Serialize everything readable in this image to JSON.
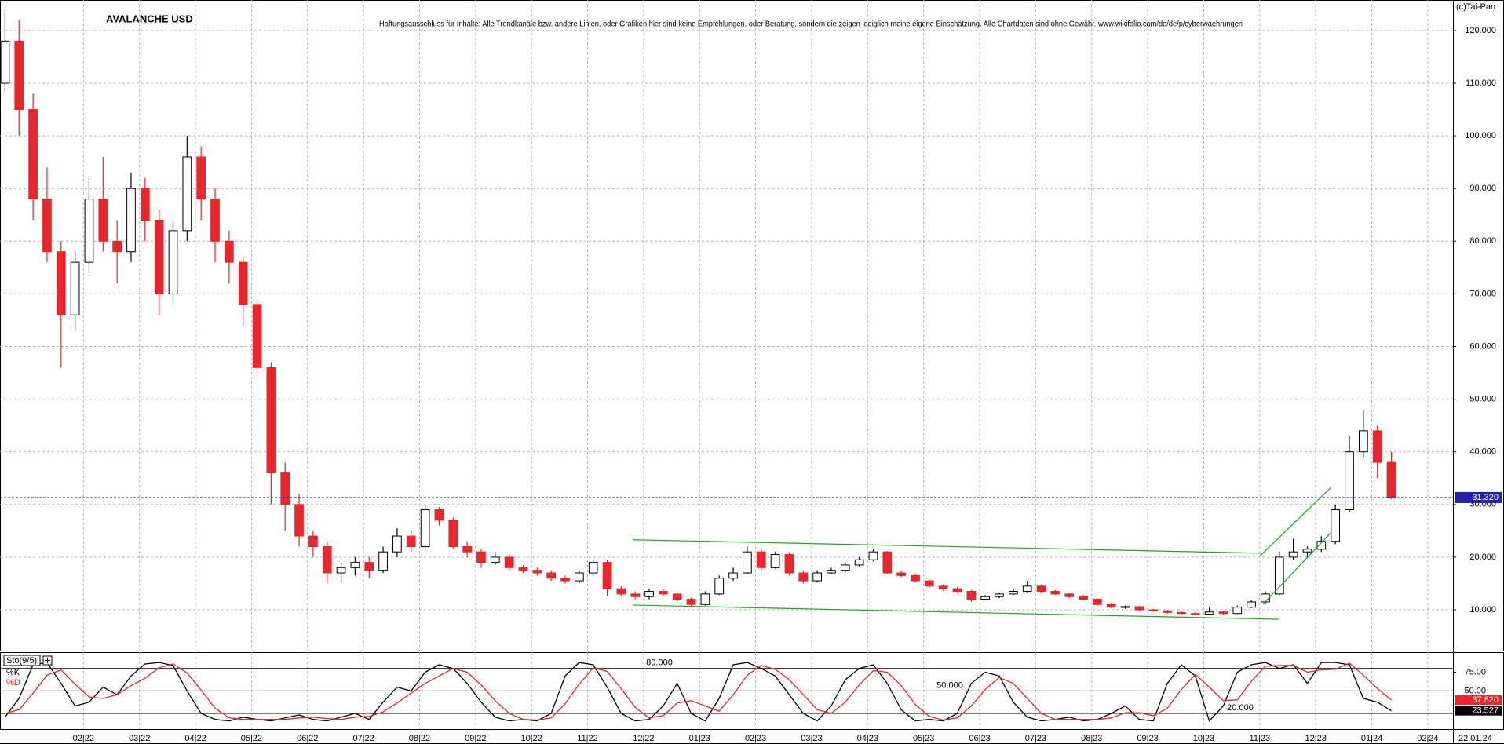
{
  "chart_data": [
    {
      "type": "candlestick",
      "title": "AVALANCHE USD",
      "disclaimer": "Haftungsausschluss für Inhalte: Alle Trendkanäle bzw. andere Linien, oder Grafiken hier sind keine Empfehlungen, oder Beratung, sondern die zeigen lediglich meine eigene Einschätzung. Alle Chartdaten sind ohne Gewähr.  www.wikifolio.com/de/de/p/cyberwaehrungen",
      "copyright": "(c)Tai-Pan",
      "date_label": "22.01.24",
      "up_color": "#ffffff",
      "down_color": "#e8262b",
      "grid": true,
      "xlim": [
        -0.49,
        25.45
      ],
      "ylim": [
        2.25,
        125.8
      ],
      "xticks": [
        {
          "value": 1,
          "label": "02|22"
        },
        {
          "value": 2,
          "label": "03|22"
        },
        {
          "value": 3,
          "label": "04|22"
        },
        {
          "value": 4,
          "label": "05|22"
        },
        {
          "value": 5,
          "label": "06|22"
        },
        {
          "value": 6,
          "label": "07|22"
        },
        {
          "value": 7,
          "label": "08|22"
        },
        {
          "value": 8,
          "label": "09|22"
        },
        {
          "value": 9,
          "label": "10|22"
        },
        {
          "value": 10,
          "label": "11|22"
        },
        {
          "value": 11,
          "label": "12|22"
        },
        {
          "value": 12,
          "label": "01|23"
        },
        {
          "value": 13,
          "label": "02|23"
        },
        {
          "value": 14,
          "label": "03|23"
        },
        {
          "value": 15,
          "label": "04|23"
        },
        {
          "value": 16,
          "label": "05|23"
        },
        {
          "value": 17,
          "label": "06|23"
        },
        {
          "value": 18,
          "label": "07|23"
        },
        {
          "value": 19,
          "label": "08|23"
        },
        {
          "value": 20,
          "label": "09|23"
        },
        {
          "value": 21,
          "label": "10|23"
        },
        {
          "value": 22,
          "label": "11|23"
        },
        {
          "value": 23,
          "label": "12|23"
        },
        {
          "value": 24,
          "label": "01|24"
        },
        {
          "value": 25,
          "label": "02|24"
        }
      ],
      "yticks": [
        {
          "value": 120,
          "label": "120.000"
        },
        {
          "value": 110,
          "label": "110.000"
        },
        {
          "value": 100,
          "label": "100.000"
        },
        {
          "value": 90,
          "label": "90.000"
        },
        {
          "value": 80,
          "label": "80.000"
        },
        {
          "value": 70,
          "label": "70.000"
        },
        {
          "value": 60,
          "label": "60.000"
        },
        {
          "value": 50,
          "label": "50.000"
        },
        {
          "value": 40,
          "label": "40.000"
        },
        {
          "value": 30,
          "label": "30.000"
        },
        {
          "value": 20,
          "label": "20.000"
        },
        {
          "value": 10,
          "label": "10.000"
        }
      ],
      "last_price": {
        "value": 31.32,
        "label": "31.320",
        "color": "#2222aa"
      },
      "trendlines": [
        {
          "color": "#22a322",
          "x": [
            10.81,
            22.03
          ],
          "y": [
            23.3,
            20.75
          ]
        },
        {
          "color": "#22a322",
          "x": [
            10.81,
            22.34
          ],
          "y": [
            10.9,
            8.2
          ]
        },
        {
          "color": "#22a322",
          "x": [
            22.0,
            23.28
          ],
          "y": [
            20.2,
            33.3
          ]
        },
        {
          "color": "#22a322",
          "x": [
            22.06,
            23.28
          ],
          "y": [
            11.1,
            24.75
          ]
        }
      ],
      "x": [
        -0.4,
        -0.15,
        0.1,
        0.35,
        0.6,
        0.85,
        1.1,
        1.35,
        1.6,
        1.85,
        2.1,
        2.35,
        2.6,
        2.85,
        3.1,
        3.35,
        3.6,
        3.85,
        4.1,
        4.35,
        4.6,
        4.85,
        5.1,
        5.35,
        5.6,
        5.85,
        6.1,
        6.35,
        6.6,
        6.85,
        7.1,
        7.35,
        7.6,
        7.85,
        8.1,
        8.35,
        8.6,
        8.85,
        9.1,
        9.35,
        9.6,
        9.85,
        10.1,
        10.35,
        10.6,
        10.85,
        11.1,
        11.35,
        11.6,
        11.85,
        12.1,
        12.35,
        12.6,
        12.85,
        13.1,
        13.35,
        13.6,
        13.85,
        14.1,
        14.35,
        14.6,
        14.85,
        15.1,
        15.35,
        15.6,
        15.85,
        16.1,
        16.35,
        16.6,
        16.85,
        17.1,
        17.35,
        17.6,
        17.85,
        18.1,
        18.35,
        18.6,
        18.85,
        19.1,
        19.35,
        19.6,
        19.85,
        20.1,
        20.35,
        20.6,
        20.85,
        21.1,
        21.35,
        21.6,
        21.85,
        22.1,
        22.35,
        22.6,
        22.85,
        23.1,
        23.35,
        23.6,
        23.85,
        24.1,
        24.35
      ],
      "ohlc": [
        [
          110,
          124,
          108,
          118
        ],
        [
          118,
          122,
          100,
          105
        ],
        [
          105,
          108,
          84,
          88
        ],
        [
          88,
          94,
          76,
          78
        ],
        [
          78,
          80,
          56,
          66
        ],
        [
          66,
          78,
          63,
          76
        ],
        [
          76,
          92,
          74,
          88
        ],
        [
          88,
          96,
          78,
          80
        ],
        [
          80,
          84,
          72,
          78
        ],
        [
          78,
          93,
          76,
          90
        ],
        [
          90,
          92,
          80,
          84
        ],
        [
          84,
          86,
          66,
          70
        ],
        [
          70,
          84,
          68,
          82
        ],
        [
          82,
          100,
          80,
          96
        ],
        [
          96,
          98,
          84,
          88
        ],
        [
          88,
          90,
          76,
          80
        ],
        [
          80,
          82,
          72,
          76
        ],
        [
          76,
          77,
          64,
          68
        ],
        [
          68,
          69,
          54,
          56
        ],
        [
          56,
          57,
          30,
          36
        ],
        [
          36,
          38,
          25,
          30
        ],
        [
          30,
          32,
          22,
          24
        ],
        [
          24,
          25,
          20,
          22
        ],
        [
          22,
          23,
          15,
          17
        ],
        [
          17,
          19,
          15,
          18
        ],
        [
          18,
          20,
          16.5,
          19
        ],
        [
          19,
          20,
          16,
          17.5
        ],
        [
          17.5,
          22,
          17,
          21
        ],
        [
          21,
          25.5,
          20,
          24
        ],
        [
          24,
          25,
          21,
          22
        ],
        [
          22,
          30,
          21.5,
          29
        ],
        [
          29,
          29.5,
          26,
          27
        ],
        [
          27,
          27.5,
          21.5,
          22
        ],
        [
          22,
          23,
          20,
          21
        ],
        [
          21,
          21.5,
          18,
          19
        ],
        [
          19,
          21,
          18.5,
          20
        ],
        [
          20,
          20.5,
          17.5,
          18
        ],
        [
          18,
          18.5,
          17,
          17.5
        ],
        [
          17.5,
          18,
          16.5,
          17
        ],
        [
          17,
          17.5,
          15.5,
          16
        ],
        [
          16,
          16.5,
          15,
          15.5
        ],
        [
          15.5,
          17.5,
          15,
          17
        ],
        [
          17,
          19.5,
          16.5,
          19
        ],
        [
          19,
          19.5,
          12.5,
          14
        ],
        [
          14,
          14.5,
          12.5,
          13
        ],
        [
          13,
          13.5,
          12,
          12.5
        ],
        [
          12.5,
          14,
          12,
          13.5
        ],
        [
          13.5,
          14,
          12.5,
          13
        ],
        [
          13,
          13.3,
          11.5,
          12
        ],
        [
          12,
          12.3,
          10.5,
          11
        ],
        [
          11,
          13.5,
          10.8,
          13
        ],
        [
          13,
          16.5,
          12.8,
          16
        ],
        [
          16,
          18,
          15.5,
          17
        ],
        [
          17,
          22,
          16.8,
          21
        ],
        [
          21,
          21.5,
          17.5,
          18
        ],
        [
          18,
          21,
          17.8,
          20.5
        ],
        [
          20.5,
          21,
          16.5,
          17
        ],
        [
          17,
          17.5,
          15,
          15.5
        ],
        [
          15.5,
          17.5,
          15.2,
          17
        ],
        [
          17,
          18,
          16.8,
          17.5
        ],
        [
          17.5,
          19,
          17.2,
          18.5
        ],
        [
          18.5,
          20,
          18.2,
          19.5
        ],
        [
          19.5,
          21.5,
          19.2,
          21
        ],
        [
          21,
          21.2,
          16.8,
          17
        ],
        [
          17,
          17.5,
          16.2,
          16.5
        ],
        [
          16.5,
          16.8,
          15.2,
          15.5
        ],
        [
          15.5,
          15.8,
          14.2,
          14.5
        ],
        [
          14.5,
          14.8,
          13.6,
          14
        ],
        [
          14,
          14.3,
          13.2,
          13.5
        ],
        [
          13.5,
          13.8,
          11.5,
          12
        ],
        [
          12,
          12.8,
          11.8,
          12.5
        ],
        [
          12.5,
          13.3,
          12.2,
          13
        ],
        [
          13,
          14,
          12.8,
          13.5
        ],
        [
          13.5,
          15.5,
          13.3,
          14.5
        ],
        [
          14.5,
          14.8,
          13.2,
          13.5
        ],
        [
          13.5,
          13.8,
          12.8,
          13
        ],
        [
          13,
          13.2,
          12.2,
          12.5
        ],
        [
          12.5,
          12.8,
          11.8,
          12
        ],
        [
          12,
          12.2,
          10.8,
          11
        ],
        [
          11,
          11.3,
          10.3,
          10.5
        ],
        [
          10.5,
          10.8,
          10.2,
          10.6
        ],
        [
          10.6,
          10.8,
          9.8,
          10
        ],
        [
          10,
          10.2,
          9.6,
          9.8
        ],
        [
          9.8,
          10,
          9.3,
          9.5
        ],
        [
          9.5,
          9.7,
          9.1,
          9.3
        ],
        [
          9.3,
          9.5,
          9,
          9.2
        ],
        [
          9.2,
          10.4,
          9.1,
          9.6
        ],
        [
          9.6,
          9.8,
          9.1,
          9.3
        ],
        [
          9.3,
          10.8,
          9.2,
          10.5
        ],
        [
          10.5,
          11.8,
          10.3,
          11.5
        ],
        [
          11.5,
          13.5,
          11.2,
          13
        ],
        [
          13,
          21,
          12.8,
          20
        ],
        [
          20,
          23.5,
          19.5,
          21
        ],
        [
          21,
          22,
          19.8,
          21.5
        ],
        [
          21.5,
          24,
          21,
          23
        ],
        [
          23,
          30,
          22.5,
          29
        ],
        [
          29,
          43,
          28.5,
          40
        ],
        [
          40,
          48,
          39,
          44
        ],
        [
          44,
          45,
          35,
          38
        ],
        [
          38,
          40,
          31,
          31.3
        ]
      ]
    },
    {
      "type": "line",
      "title": "Sto(9/5)",
      "xlim": [
        -0.49,
        25.45
      ],
      "ylim": [
        -0.9,
        101.7
      ],
      "yticks": [
        {
          "value": 75,
          "label": "75.00"
        },
        {
          "value": 50,
          "label": "50.00"
        }
      ],
      "hlines": [
        {
          "value": 80,
          "label": "80.000"
        },
        {
          "value": 50,
          "label": "50.000"
        },
        {
          "value": 20,
          "label": "20.000"
        }
      ],
      "x": [
        -0.4,
        -0.15,
        0.1,
        0.35,
        0.6,
        0.85,
        1.1,
        1.35,
        1.6,
        1.85,
        2.1,
        2.35,
        2.6,
        2.85,
        3.1,
        3.35,
        3.6,
        3.85,
        4.1,
        4.35,
        4.6,
        4.85,
        5.1,
        5.35,
        5.6,
        5.85,
        6.1,
        6.35,
        6.6,
        6.85,
        7.1,
        7.35,
        7.6,
        7.85,
        8.1,
        8.35,
        8.6,
        8.85,
        9.1,
        9.35,
        9.6,
        9.85,
        10.1,
        10.35,
        10.6,
        10.85,
        11.1,
        11.35,
        11.6,
        11.85,
        12.1,
        12.35,
        12.6,
        12.85,
        13.1,
        13.35,
        13.6,
        13.85,
        14.1,
        14.35,
        14.6,
        14.85,
        15.1,
        15.35,
        15.6,
        15.85,
        16.1,
        16.35,
        16.6,
        16.85,
        17.1,
        17.35,
        17.6,
        17.85,
        18.1,
        18.35,
        18.6,
        18.85,
        19.1,
        19.35,
        19.6,
        19.85,
        20.1,
        20.35,
        20.6,
        20.85,
        21.1,
        21.35,
        21.6,
        21.85,
        22.1,
        22.35,
        22.6,
        22.85,
        23.1,
        23.35,
        23.6,
        23.85,
        24.1,
        24.35
      ],
      "series": [
        {
          "name": "%K",
          "color": "#000000",
          "last_label": "23.527",
          "values": [
            15,
            40,
            85,
            88,
            60,
            30,
            35,
            55,
            45,
            70,
            86,
            88,
            84,
            50,
            20,
            12,
            10,
            15,
            12,
            10,
            14,
            18,
            12,
            10,
            15,
            20,
            12,
            35,
            55,
            50,
            75,
            85,
            80,
            60,
            35,
            15,
            10,
            12,
            10,
            20,
            70,
            88,
            85,
            55,
            20,
            10,
            12,
            30,
            60,
            20,
            10,
            40,
            85,
            88,
            80,
            70,
            45,
            20,
            10,
            30,
            65,
            80,
            85,
            60,
            25,
            10,
            12,
            10,
            20,
            60,
            75,
            70,
            35,
            15,
            10,
            12,
            15,
            10,
            12,
            20,
            30,
            12,
            10,
            60,
            85,
            70,
            10,
            30,
            75,
            85,
            88,
            80,
            85,
            60,
            88,
            88,
            85,
            40,
            35,
            23.527
          ]
        },
        {
          "name": "%D",
          "color": "#e8262b",
          "last_label": "37.820",
          "values": [
            20,
            25,
            47,
            71,
            78,
            59,
            42,
            40,
            45,
            57,
            67,
            81,
            86,
            74,
            51,
            27,
            14,
            12,
            12,
            12,
            12,
            14,
            15,
            13,
            12,
            15,
            16,
            22,
            34,
            47,
            60,
            70,
            80,
            75,
            58,
            37,
            20,
            12,
            11,
            14,
            33,
            59,
            81,
            76,
            53,
            28,
            14,
            17,
            34,
            37,
            30,
            23,
            45,
            71,
            84,
            79,
            65,
            45,
            25,
            20,
            35,
            58,
            77,
            75,
            57,
            32,
            16,
            11,
            14,
            30,
            52,
            68,
            60,
            40,
            20,
            12,
            12,
            12,
            12,
            14,
            21,
            21,
            17,
            27,
            52,
            72,
            55,
            37,
            38,
            63,
            83,
            84,
            84,
            75,
            78,
            79,
            87,
            71,
            53,
            37.82
          ]
        }
      ]
    }
  ]
}
